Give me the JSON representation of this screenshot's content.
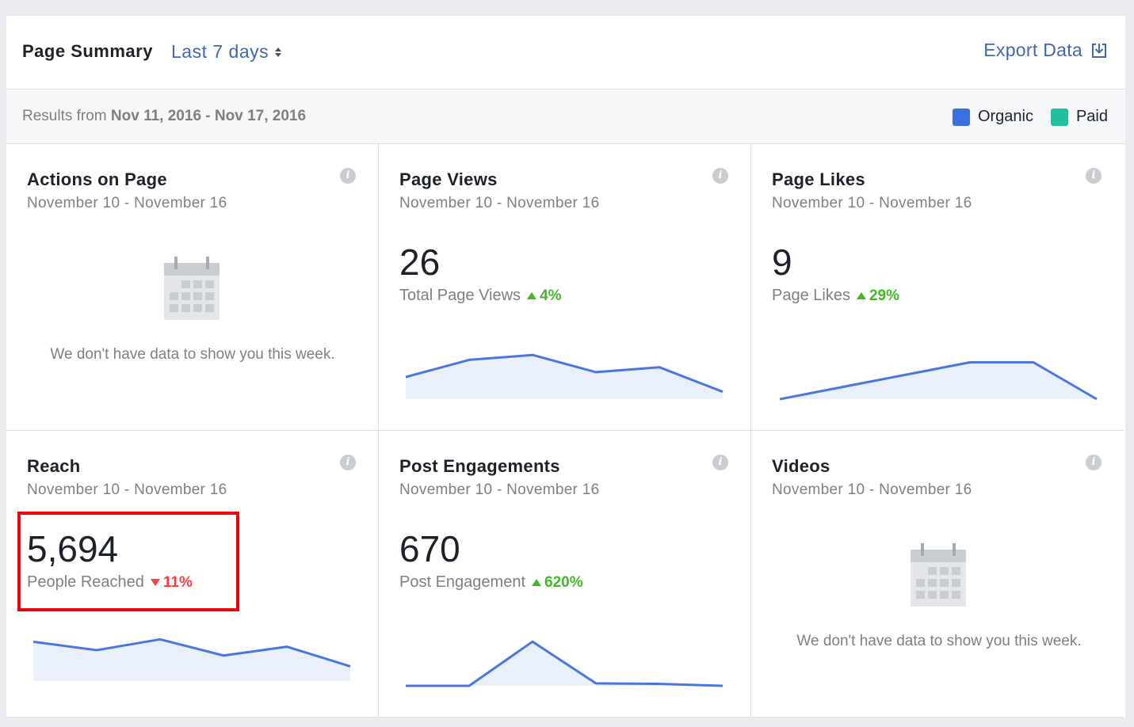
{
  "header": {
    "title": "Page Summary",
    "range_label": "Last 7 days",
    "export_label": "Export Data"
  },
  "subheader": {
    "results_prefix": "Results from",
    "results_range": "Nov 11, 2016 - Nov 17, 2016",
    "legend": [
      {
        "label": "Organic",
        "color": "#3b6fdb"
      },
      {
        "label": "Paid",
        "color": "#1fbfa0"
      }
    ]
  },
  "cards": {
    "actions": {
      "title": "Actions on Page",
      "date": "November 10 - November 16",
      "nodata": "We don't have data to show you this week."
    },
    "page_views": {
      "title": "Page Views",
      "date": "November 10 - November 16",
      "value": "26",
      "metric": "Total Page Views",
      "change": "4%",
      "trend": "up"
    },
    "page_likes": {
      "title": "Page Likes",
      "date": "November 10 - November 16",
      "value": "9",
      "metric": "Page Likes",
      "change": "29%",
      "trend": "up"
    },
    "reach": {
      "title": "Reach",
      "date": "November 10 - November 16",
      "value": "5,694",
      "metric": "People Reached",
      "change": "11%",
      "trend": "down"
    },
    "post_engagements": {
      "title": "Post Engagements",
      "date": "November 10 - November 16",
      "value": "670",
      "metric": "Post Engagement",
      "change": "620%",
      "trend": "up"
    },
    "videos": {
      "title": "Videos",
      "date": "November 10 - November 16",
      "nodata": "We don't have data to show you this week."
    }
  },
  "sparklines": {
    "page_views": [
      0.45,
      0.8,
      0.9,
      0.55,
      0.65,
      0.15
    ],
    "page_likes": [
      0.0,
      0.25,
      0.5,
      0.75,
      0.75,
      0.0
    ],
    "reach": [
      0.8,
      0.63,
      0.85,
      0.52,
      0.7,
      0.3
    ],
    "post_engagements": [
      0.0,
      0.0,
      0.9,
      0.05,
      0.04,
      0.0
    ]
  },
  "colors": {
    "line": "#4a76e0",
    "fill": "#e9effb"
  }
}
